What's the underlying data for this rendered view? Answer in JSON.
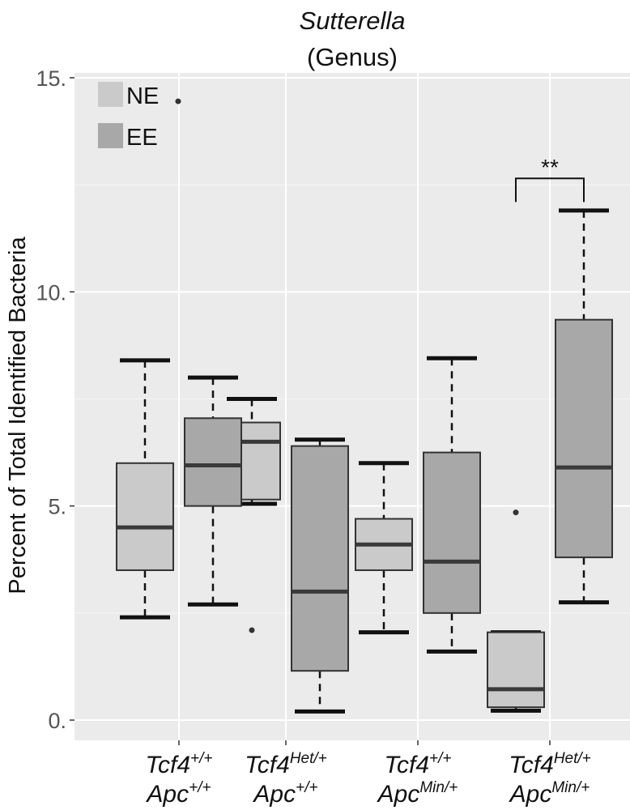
{
  "chart_data": {
    "type": "box",
    "title": "Sutterella",
    "subtitle": "(Genus)",
    "ylabel": "Percent of Total Identified Bacteria",
    "ylim": [
      -0.5,
      15.3
    ],
    "yticks": [
      0,
      5,
      10,
      15
    ],
    "ytick_labels": [
      "0.",
      "5.",
      "10.",
      "15."
    ],
    "grid": true,
    "legend_position": "top-left",
    "legend": [
      {
        "label": "NE",
        "color": "#cacaca"
      },
      {
        "label": "EE",
        "color": "#a8a8a8"
      }
    ],
    "categories": [
      {
        "base1": "Tcf4",
        "sup1": "+/+",
        "base2": "Apc",
        "sup2": "+/+"
      },
      {
        "base1": "Tcf4",
        "sup1": "Het/+",
        "base2": "Apc",
        "sup2": "+/+"
      },
      {
        "base1": "Tcf4",
        "sup1": "+/+",
        "base2": "Apc",
        "sup2": "Min/+"
      },
      {
        "base1": "Tcf4",
        "sup1": "Het/+",
        "base2": "Apc",
        "sup2": "Min/+"
      }
    ],
    "series": [
      {
        "name": "NE",
        "color": "#cacaca",
        "boxes": [
          {
            "whisker_low": 2.4,
            "q1": 3.5,
            "median": 4.5,
            "q3": 6.0,
            "whisker_high": 8.4,
            "outliers": []
          },
          {
            "whisker_low": 5.05,
            "q1": 5.15,
            "median": 6.5,
            "q3": 6.95,
            "whisker_high": 7.5,
            "outliers": [
              2.1
            ]
          },
          {
            "whisker_low": 2.05,
            "q1": 3.5,
            "median": 4.1,
            "q3": 4.7,
            "whisker_high": 6.0,
            "outliers": []
          },
          {
            "whisker_low": 0.22,
            "q1": 0.3,
            "median": 0.72,
            "q3": 2.05,
            "whisker_high": 2.05,
            "outliers": [
              4.85
            ]
          }
        ]
      },
      {
        "name": "EE",
        "color": "#a8a8a8",
        "boxes": [
          {
            "whisker_low": 2.7,
            "q1": 5.0,
            "median": 5.95,
            "q3": 7.05,
            "whisker_high": 8.0,
            "outliers": []
          },
          {
            "whisker_low": 0.2,
            "q1": 1.15,
            "median": 3.0,
            "q3": 6.4,
            "whisker_high": 6.55,
            "outliers": []
          },
          {
            "whisker_low": 1.6,
            "q1": 2.5,
            "median": 3.7,
            "q3": 6.25,
            "whisker_high": 8.45,
            "outliers": []
          },
          {
            "whisker_low": 2.75,
            "q1": 3.8,
            "median": 5.9,
            "q3": 9.35,
            "whisker_high": 11.9,
            "outliers": []
          }
        ]
      }
    ],
    "extra_points": [
      14.45
    ],
    "annotations": [
      {
        "text": "**",
        "category_index": 3,
        "bracket_y": 12.65,
        "bracket_drop": 0.55
      }
    ]
  }
}
